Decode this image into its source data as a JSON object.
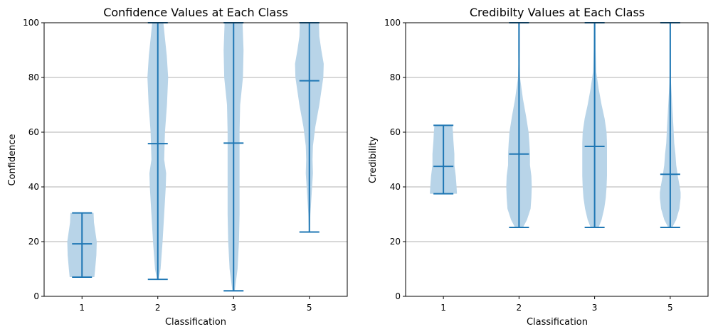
{
  "chart_data": [
    {
      "type": "violin",
      "title": "Confidence Values at Each Class",
      "xlabel": "Classification",
      "ylabel": "Confidence",
      "ylim": [
        0,
        100
      ],
      "yticks": [
        0,
        20,
        40,
        60,
        80,
        100
      ],
      "grid": "y",
      "categories": [
        "1",
        "2",
        "3",
        "5"
      ],
      "color": "#1f77b4",
      "fill_color": "#b8d4e8",
      "violins": [
        {
          "category": "1",
          "min": 7,
          "max": 30.5,
          "median": 19.2,
          "density": [
            [
              7,
              0.62
            ],
            [
              10,
              0.66
            ],
            [
              15,
              0.72
            ],
            [
              20,
              0.74
            ],
            [
              24,
              0.66
            ],
            [
              27,
              0.6
            ],
            [
              30.5,
              0.58
            ]
          ]
        },
        {
          "category": "2",
          "min": 6.2,
          "max": 100,
          "median": 55.8,
          "density": [
            [
              6.2,
              0.04
            ],
            [
              10,
              0.14
            ],
            [
              20,
              0.24
            ],
            [
              30,
              0.32
            ],
            [
              40,
              0.4
            ],
            [
              45,
              0.42
            ],
            [
              50,
              0.32
            ],
            [
              60,
              0.36
            ],
            [
              70,
              0.46
            ],
            [
              80,
              0.52
            ],
            [
              88,
              0.45
            ],
            [
              95,
              0.35
            ],
            [
              100,
              0.28
            ]
          ]
        },
        {
          "category": "3",
          "min": 2,
          "max": 100,
          "median": 56,
          "density": [
            [
              2,
              0.06
            ],
            [
              10,
              0.2
            ],
            [
              20,
              0.27
            ],
            [
              30,
              0.3
            ],
            [
              40,
              0.3
            ],
            [
              50,
              0.3
            ],
            [
              60,
              0.3
            ],
            [
              70,
              0.33
            ],
            [
              80,
              0.47
            ],
            [
              90,
              0.5
            ],
            [
              100,
              0.45
            ]
          ]
        },
        {
          "category": "5",
          "min": 23.5,
          "max": 100,
          "median": 78.8,
          "density": [
            [
              23.5,
              0.02
            ],
            [
              30,
              0.05
            ],
            [
              38,
              0.12
            ],
            [
              45,
              0.18
            ],
            [
              50,
              0.16
            ],
            [
              55,
              0.18
            ],
            [
              62,
              0.3
            ],
            [
              70,
              0.5
            ],
            [
              80,
              0.7
            ],
            [
              85,
              0.72
            ],
            [
              90,
              0.6
            ],
            [
              95,
              0.5
            ],
            [
              100,
              0.48
            ]
          ]
        }
      ]
    },
    {
      "type": "violin",
      "title": "Credibilty Values at Each Class",
      "xlabel": "Classification",
      "ylabel": "Credibility",
      "ylim": [
        0,
        100
      ],
      "yticks": [
        0,
        20,
        40,
        60,
        80,
        100
      ],
      "grid": "y",
      "categories": [
        "1",
        "2",
        "3",
        "5"
      ],
      "color": "#1f77b4",
      "fill_color": "#b8d4e8",
      "violins": [
        {
          "category": "1",
          "min": 37.5,
          "max": 62.5,
          "median": 47.5,
          "density": [
            [
              37.5,
              0.68
            ],
            [
              40,
              0.66
            ],
            [
              44,
              0.62
            ],
            [
              48,
              0.55
            ],
            [
              52,
              0.55
            ],
            [
              57,
              0.5
            ],
            [
              60,
              0.48
            ],
            [
              62.5,
              0.45
            ]
          ]
        },
        {
          "category": "2",
          "min": 25.2,
          "max": 100,
          "median": 52,
          "density": [
            [
              25.2,
              0.2
            ],
            [
              28,
              0.4
            ],
            [
              32,
              0.58
            ],
            [
              36,
              0.62
            ],
            [
              40,
              0.64
            ],
            [
              44,
              0.62
            ],
            [
              48,
              0.55
            ],
            [
              52,
              0.55
            ],
            [
              56,
              0.52
            ],
            [
              60,
              0.48
            ],
            [
              66,
              0.35
            ],
            [
              72,
              0.2
            ],
            [
              80,
              0.05
            ],
            [
              85,
              0.03
            ],
            [
              90,
              0.04
            ],
            [
              100,
              0.04
            ]
          ]
        },
        {
          "category": "3",
          "min": 25.2,
          "max": 100,
          "median": 54.8,
          "density": [
            [
              25.2,
              0.2
            ],
            [
              28,
              0.35
            ],
            [
              32,
              0.48
            ],
            [
              36,
              0.56
            ],
            [
              40,
              0.6
            ],
            [
              44,
              0.62
            ],
            [
              48,
              0.62
            ],
            [
              52,
              0.62
            ],
            [
              56,
              0.62
            ],
            [
              60,
              0.6
            ],
            [
              65,
              0.5
            ],
            [
              70,
              0.35
            ],
            [
              76,
              0.2
            ],
            [
              82,
              0.08
            ],
            [
              90,
              0.05
            ],
            [
              100,
              0.04
            ]
          ]
        },
        {
          "category": "5",
          "min": 25.2,
          "max": 100,
          "median": 44.6,
          "density": [
            [
              25.2,
              0.1
            ],
            [
              28,
              0.3
            ],
            [
              32,
              0.46
            ],
            [
              36,
              0.52
            ],
            [
              38,
              0.52
            ],
            [
              40,
              0.48
            ],
            [
              44,
              0.38
            ],
            [
              48,
              0.3
            ],
            [
              52,
              0.26
            ],
            [
              56,
              0.2
            ],
            [
              62,
              0.16
            ],
            [
              70,
              0.1
            ],
            [
              78,
              0.04
            ],
            [
              85,
              0.02
            ],
            [
              100,
              0.02
            ]
          ]
        }
      ]
    }
  ]
}
